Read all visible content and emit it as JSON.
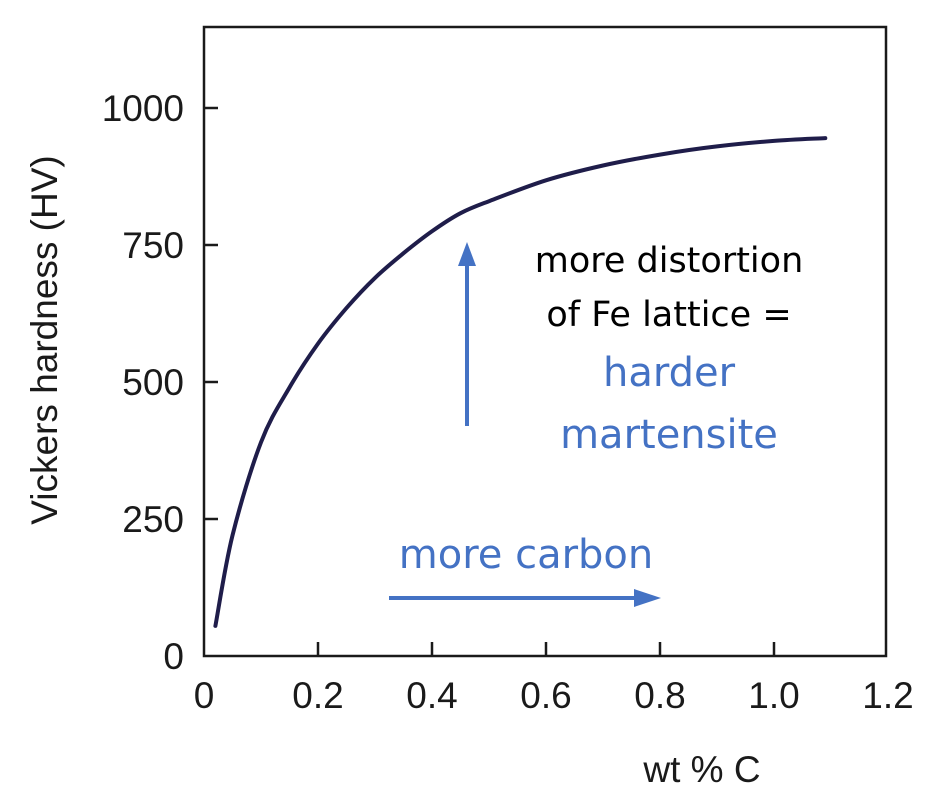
{
  "chart_data": {
    "type": "line",
    "xlabel": "wt % C",
    "ylabel": "Vickers hardness (HV)",
    "xlim": [
      0,
      1.2
    ],
    "ylim": [
      0,
      1130
    ],
    "xticks": [
      0,
      0.2,
      0.4,
      0.6,
      0.8,
      1.0,
      1.2
    ],
    "xtick_labels": [
      "0",
      "0.2",
      "0.4",
      "0.6",
      "0.8",
      "1.0",
      "1.2"
    ],
    "yticks": [
      0,
      250,
      500,
      750,
      1000
    ],
    "ytick_labels": [
      "0",
      "250",
      "500",
      "750",
      "1000"
    ],
    "grid": false,
    "series": [
      {
        "color": "#1f1d4a",
        "x": [
          0.02,
          0.05,
          0.1,
          0.15,
          0.2,
          0.25,
          0.3,
          0.35,
          0.4,
          0.45,
          0.5,
          0.6,
          0.7,
          0.8,
          0.9,
          1.0,
          1.09
        ],
        "y": [
          55,
          220,
          390,
          490,
          570,
          635,
          690,
          735,
          775,
          808,
          830,
          868,
          895,
          915,
          930,
          940,
          945
        ]
      }
    ],
    "annotations": {
      "distortion_line1": "more distortion",
      "distortion_line2": "of Fe lattice =",
      "harder_line1": "harder",
      "harder_line2": "martensite",
      "carbon": "more carbon"
    },
    "annotation_color": "#4472c4"
  }
}
